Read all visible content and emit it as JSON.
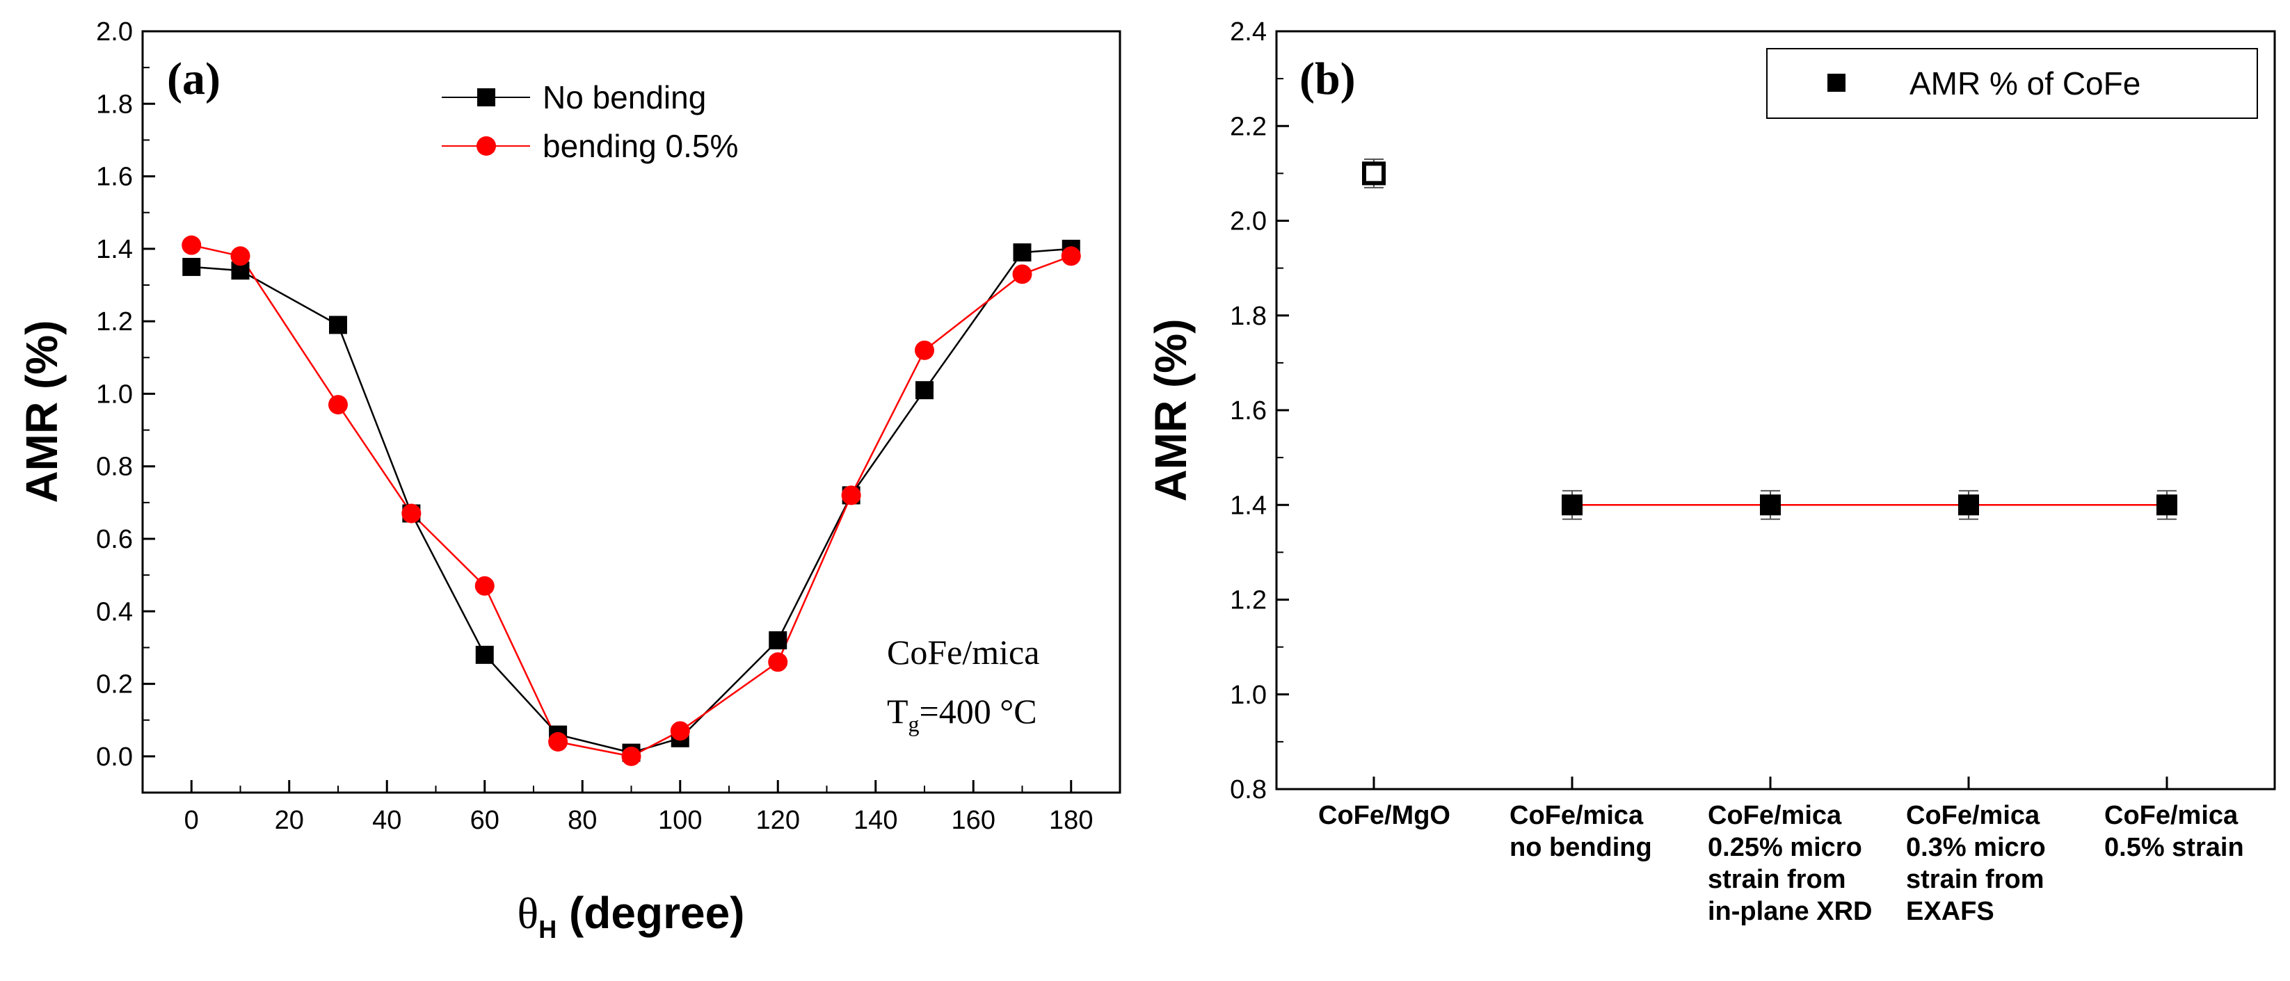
{
  "chart_data": [
    {
      "type": "line",
      "panel_label": "(a)",
      "xlabel": "θ",
      "xlabel_subscript": "H",
      "xlabel_suffix": " (degree)",
      "ylabel": "AMR (%)",
      "xlim": [
        -10,
        190
      ],
      "ylim": [
        -0.1,
        2.0
      ],
      "xticks": [
        "0",
        "20",
        "40",
        "60",
        "80",
        "100",
        "120",
        "140",
        "160",
        "180"
      ],
      "yticks": [
        "0.0",
        "0.2",
        "0.4",
        "0.6",
        "0.8",
        "1.0",
        "1.2",
        "1.4",
        "1.6",
        "1.8",
        "2.0"
      ],
      "legend_position": "top",
      "series": [
        {
          "name": "No bending",
          "color": "#000000",
          "marker": "square",
          "x": [
            0,
            10,
            30,
            45,
            60,
            75,
            90,
            100,
            120,
            135,
            150,
            170,
            180
          ],
          "y": [
            1.35,
            1.34,
            1.19,
            0.67,
            0.28,
            0.06,
            0.01,
            0.05,
            0.32,
            0.72,
            1.01,
            1.39,
            1.4
          ]
        },
        {
          "name": "bending 0.5%",
          "color": "#ff0000",
          "marker": "circle",
          "x": [
            0,
            10,
            30,
            45,
            60,
            75,
            90,
            100,
            120,
            135,
            150,
            170,
            180
          ],
          "y": [
            1.41,
            1.38,
            0.97,
            0.67,
            0.47,
            0.04,
            0.0,
            0.07,
            0.26,
            0.72,
            1.12,
            1.33,
            1.38
          ]
        }
      ],
      "annotation": {
        "line1": "CoFe/mica",
        "line2_main": "T",
        "line2_sub": "g",
        "line2_rest": "=400 °C"
      }
    },
    {
      "type": "scatter",
      "panel_label": "(b)",
      "ylabel": "AMR (%)",
      "ylim": [
        0.8,
        2.4
      ],
      "yticks": [
        "0.8",
        "1.0",
        "1.2",
        "1.4",
        "1.6",
        "1.8",
        "2.0",
        "2.2",
        "2.4"
      ],
      "legend_position": "top-right",
      "categories": [
        [
          "CoFe/MgO"
        ],
        [
          "CoFe/mica",
          "no bending"
        ],
        [
          "CoFe/mica",
          "0.25% micro",
          "strain from",
          "in-plane XRD"
        ],
        [
          "CoFe/mica",
          "0.3% micro",
          "strain from",
          "EXAFS"
        ],
        [
          "CoFe/mica",
          "0.5% strain"
        ]
      ],
      "series": [
        {
          "name": "AMR % of CoFe",
          "color": "#000000",
          "marker": "square",
          "values": [
            2.1,
            1.4,
            1.4,
            1.4,
            1.4
          ],
          "error": 0.03,
          "open_first": true,
          "connect_color": "#ff0000",
          "connect_from": 1
        }
      ]
    }
  ]
}
